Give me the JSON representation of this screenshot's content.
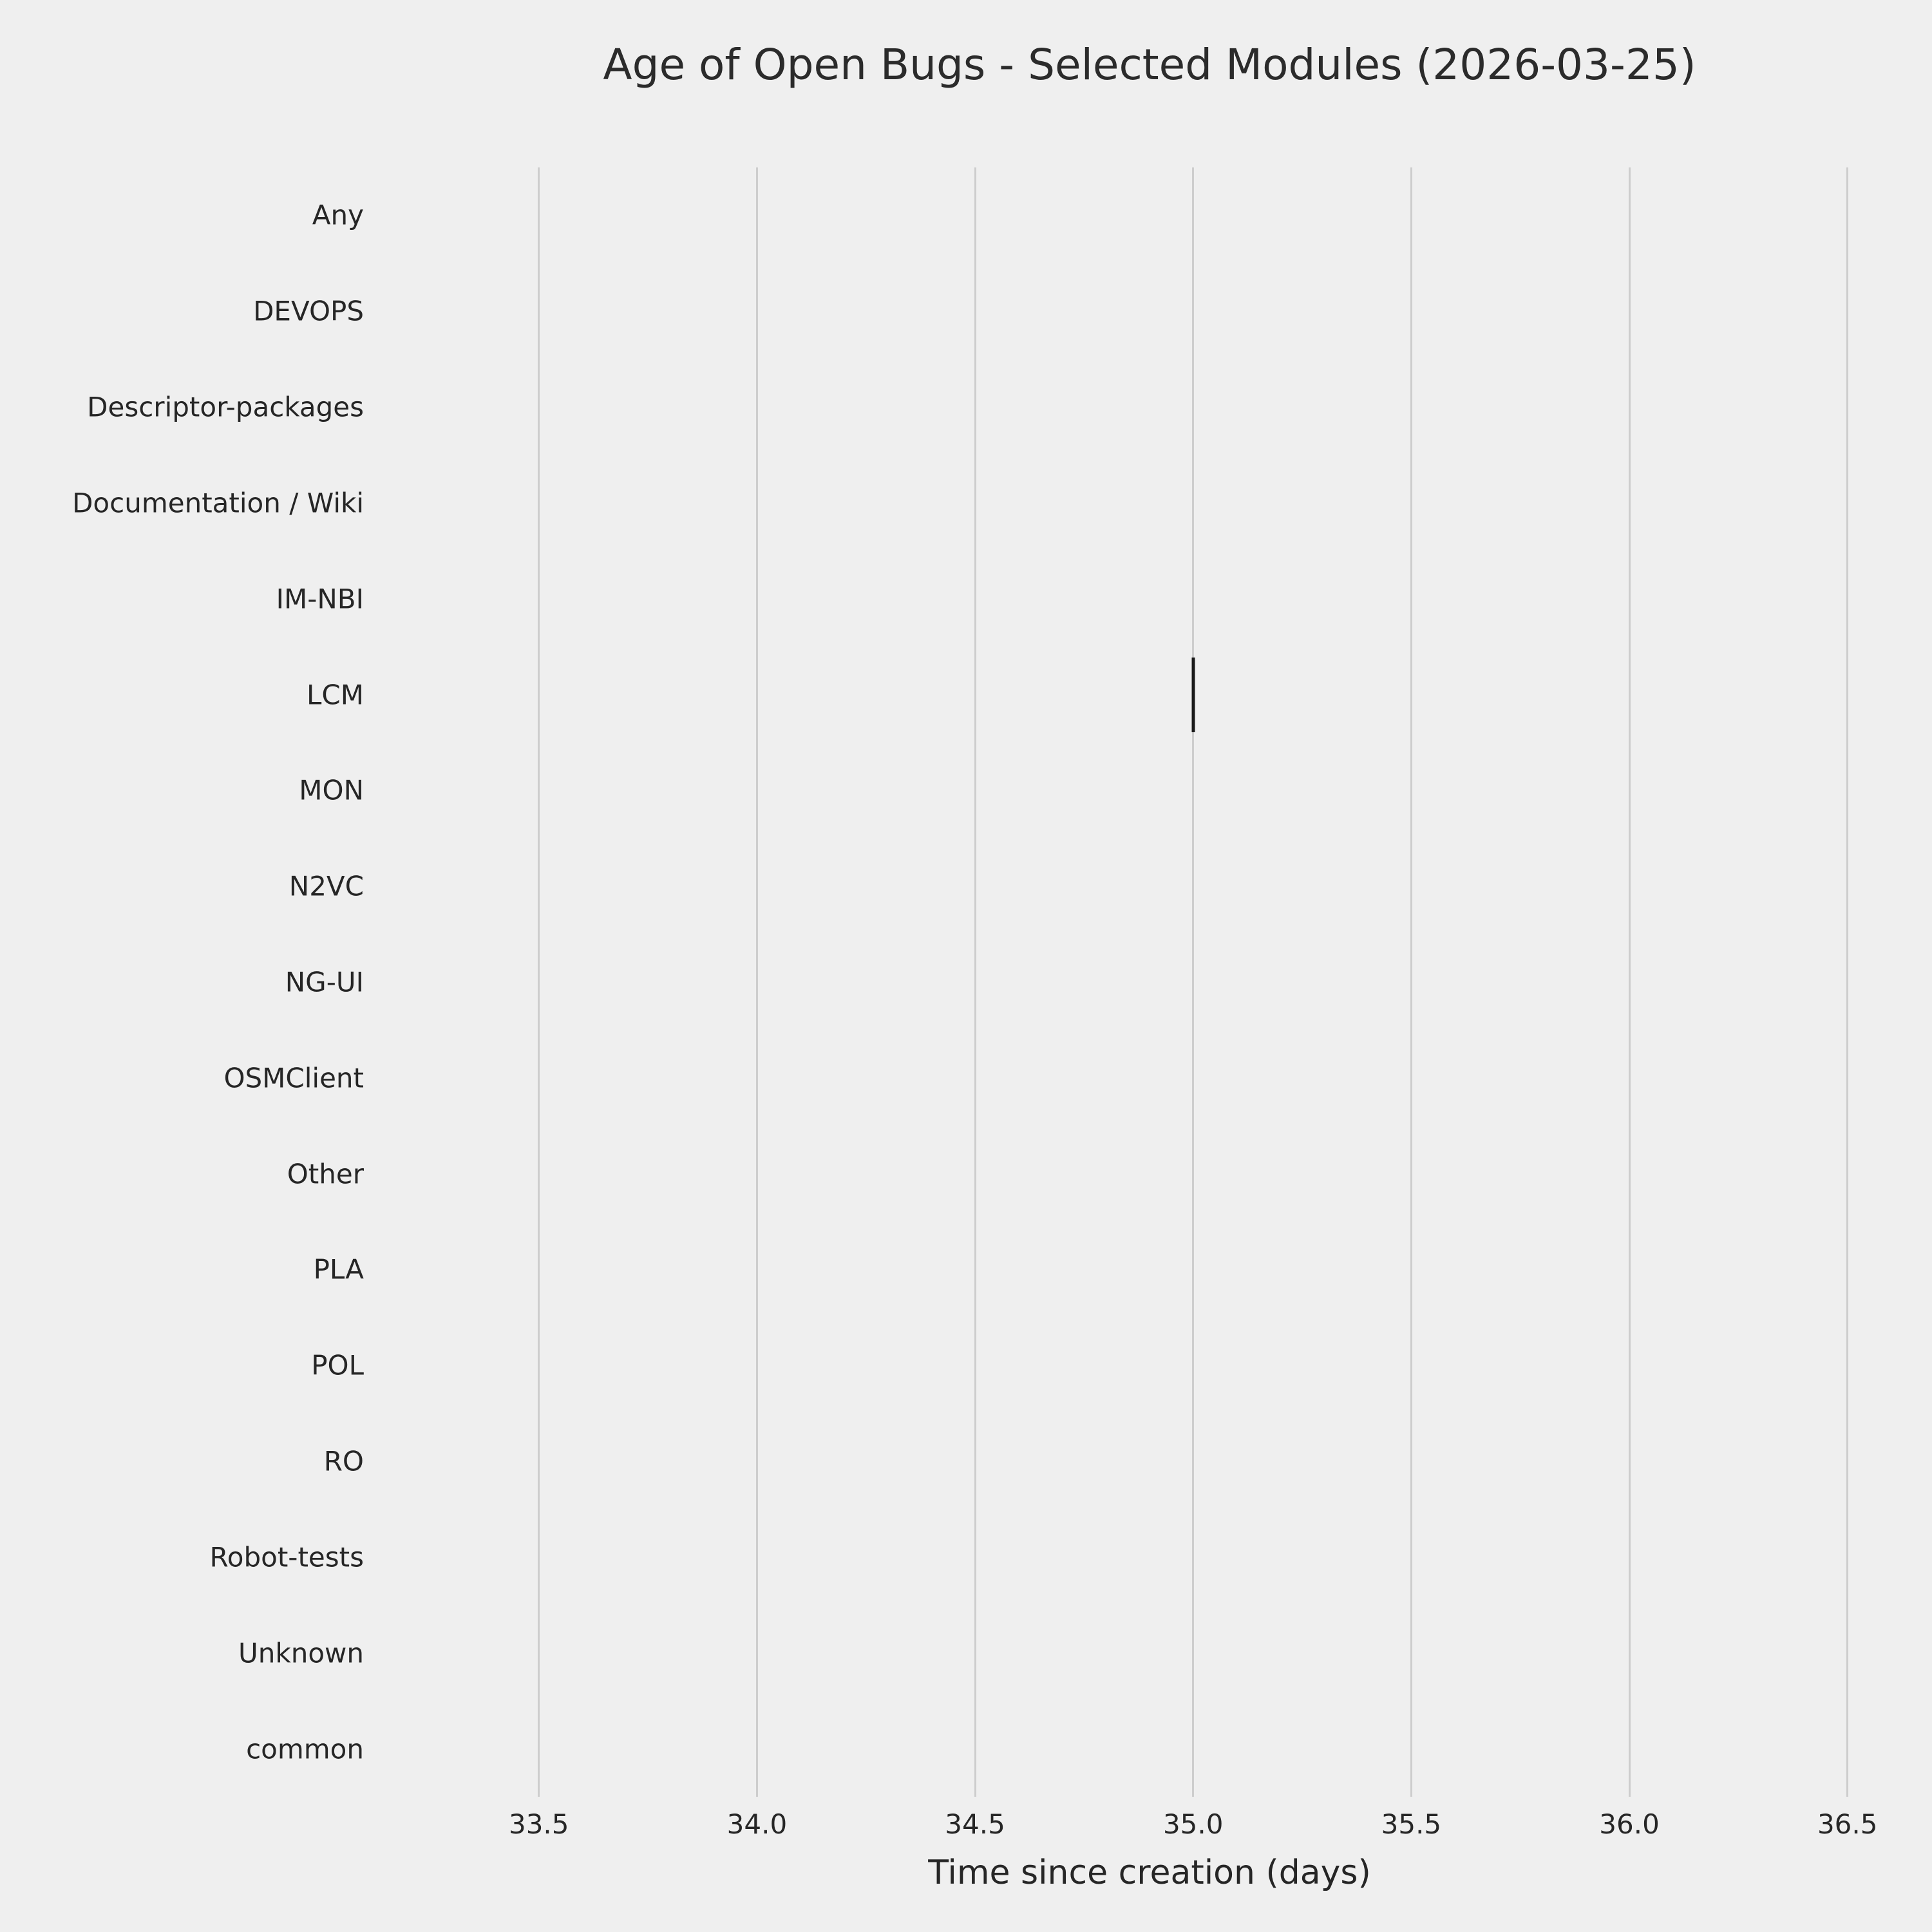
{
  "chart_data": {
    "type": "boxplot",
    "orientation": "horizontal",
    "title": "Age of Open Bugs - Selected Modules (2026-03-25)",
    "xlabel": "Time since creation (days)",
    "ylabel": "",
    "categories": [
      "Any",
      "DEVOPS",
      "Descriptor-packages",
      "Documentation / Wiki",
      "IM-NBI",
      "LCM",
      "MON",
      "N2VC",
      "NG-UI",
      "OSMClient",
      "Other",
      "PLA",
      "POL",
      "RO",
      "Robot-tests",
      "Unknown",
      "common"
    ],
    "x_ticks": [
      33.5,
      34.0,
      34.5,
      35.0,
      35.5,
      36.0,
      36.5
    ],
    "x_tick_labels": [
      "33.5",
      "34.0",
      "34.5",
      "35.0",
      "35.5",
      "36.0",
      "36.5"
    ],
    "xlim": [
      33.18,
      36.62
    ],
    "grid": true,
    "legend": "none",
    "points": [
      {
        "category": "LCM",
        "value": 35.0
      }
    ],
    "colors": {
      "background": "#efefef",
      "gridline": "#cdcdcd",
      "text": "#262626",
      "mark": "#1a1a1a"
    }
  }
}
